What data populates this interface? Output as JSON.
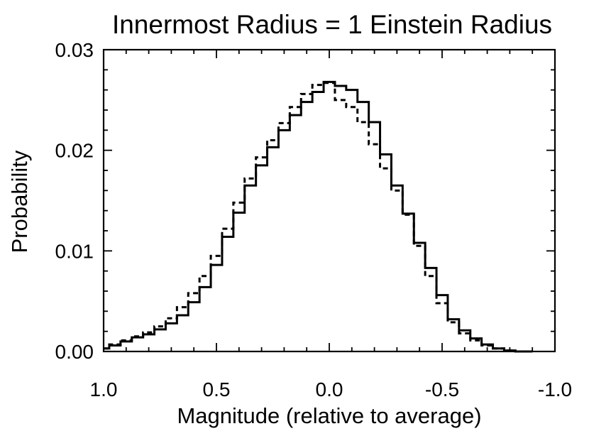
{
  "chart_data": {
    "type": "line",
    "title": "Innermost Radius = 1 Einstein Radius",
    "xlabel": "Magnitude (relative to average)",
    "ylabel": "Probability",
    "xlim": [
      1.0,
      -1.0
    ],
    "ylim": [
      0.0,
      0.03
    ],
    "x_ticks": [
      1.0,
      0.5,
      0.0,
      -0.5,
      -1.0
    ],
    "x_tick_labels": [
      "1.0",
      "0.5",
      "0.0",
      "-0.5",
      "-1.0"
    ],
    "y_ticks": [
      0.0,
      0.01,
      0.02,
      0.03
    ],
    "y_tick_labels": [
      "0.00",
      "0.01",
      "0.02",
      "0.03"
    ],
    "grid": false,
    "series": [
      {
        "name": "solid",
        "style": "solid",
        "x": [
          1.0,
          0.95,
          0.9,
          0.85,
          0.8,
          0.75,
          0.7,
          0.65,
          0.6,
          0.55,
          0.5,
          0.45,
          0.4,
          0.35,
          0.3,
          0.25,
          0.2,
          0.15,
          0.1,
          0.05,
          0.0,
          -0.05,
          -0.1,
          -0.15,
          -0.2,
          -0.25,
          -0.3,
          -0.35,
          -0.4,
          -0.45,
          -0.5,
          -0.55,
          -0.6,
          -0.65,
          -0.7,
          -0.75,
          -0.8,
          -0.85
        ],
        "values": [
          0.0003,
          0.0006,
          0.001,
          0.0014,
          0.0017,
          0.0022,
          0.0028,
          0.0036,
          0.0049,
          0.0064,
          0.0086,
          0.0114,
          0.0138,
          0.0165,
          0.0185,
          0.0203,
          0.022,
          0.0235,
          0.0248,
          0.0258,
          0.0268,
          0.0264,
          0.026,
          0.0248,
          0.0228,
          0.0196,
          0.0165,
          0.0137,
          0.0108,
          0.0083,
          0.0056,
          0.0032,
          0.0021,
          0.0013,
          0.0007,
          0.0003,
          0.0001,
          0.0
        ]
      },
      {
        "name": "dashed",
        "style": "dashed",
        "x": [
          1.0,
          0.95,
          0.9,
          0.85,
          0.8,
          0.75,
          0.7,
          0.65,
          0.6,
          0.55,
          0.5,
          0.45,
          0.4,
          0.35,
          0.3,
          0.25,
          0.2,
          0.15,
          0.1,
          0.05,
          0.0,
          -0.05,
          -0.1,
          -0.15,
          -0.2,
          -0.25,
          -0.3,
          -0.35,
          -0.4,
          -0.45,
          -0.5,
          -0.55,
          -0.6,
          -0.65,
          -0.7,
          -0.75,
          -0.8,
          -0.85
        ],
        "values": [
          0.0003,
          0.0007,
          0.0011,
          0.0015,
          0.0019,
          0.0025,
          0.0033,
          0.0044,
          0.0058,
          0.0075,
          0.0095,
          0.0122,
          0.0148,
          0.0172,
          0.0193,
          0.021,
          0.0227,
          0.0243,
          0.0256,
          0.0265,
          0.0267,
          0.025,
          0.0243,
          0.0228,
          0.0206,
          0.0182,
          0.016,
          0.0136,
          0.0105,
          0.0075,
          0.0048,
          0.0029,
          0.0018,
          0.0011,
          0.0006,
          0.0003,
          0.0001,
          0.0
        ]
      }
    ]
  }
}
